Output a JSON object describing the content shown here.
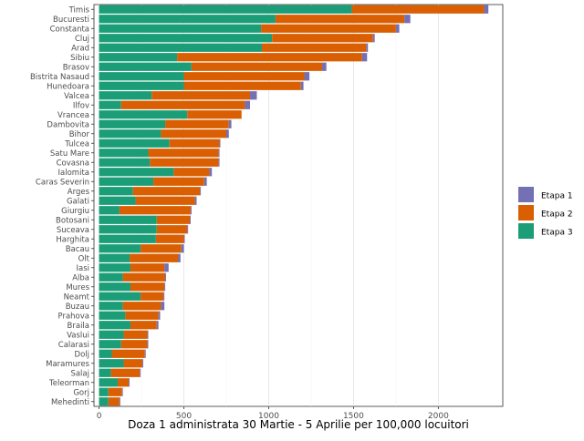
{
  "chart_data": {
    "type": "bar",
    "orientation": "horizontal",
    "stacked": true,
    "title": "",
    "xlabel": "Doza 1 administrata 30 Martie - 5 Aprilie per 100,000 locuitori",
    "ylabel": "",
    "xlim": [
      -30,
      2380
    ],
    "xticks": [
      0,
      500,
      1000,
      1500,
      2000
    ],
    "xtick_labels": [
      "0",
      "500",
      "1000",
      "1500",
      "2000"
    ],
    "grid": true,
    "legend_position": "right",
    "categories": [
      "Timis",
      "Bucuresti",
      "Constanta",
      "Cluj",
      "Arad",
      "Sibiu",
      "Brasov",
      "Bistrita Nasaud",
      "Hunedoara",
      "Valcea",
      "Ilfov",
      "Vrancea",
      "Dambovita",
      "Bihor",
      "Tulcea",
      "Satu Mare",
      "Covasna",
      "Ialomita",
      "Caras Severin",
      "Arges",
      "Galati",
      "Giurgiu",
      "Botosani",
      "Suceava",
      "Harghita",
      "Bacau",
      "Olt",
      "Iasi",
      "Alba",
      "Mures",
      "Neamt",
      "Buzau",
      "Prahova",
      "Braila",
      "Vaslui",
      "Calarasi",
      "Dolj",
      "Maramures",
      "Salaj",
      "Teleorman",
      "Gorj",
      "Mehedinti"
    ],
    "series": [
      {
        "name": "Etapa 3",
        "color": "#1b9e77",
        "values": [
          1490,
          1040,
          955,
          1020,
          960,
          460,
          545,
          500,
          500,
          310,
          130,
          520,
          390,
          365,
          415,
          290,
          300,
          440,
          320,
          200,
          215,
          120,
          340,
          340,
          335,
          245,
          180,
          185,
          140,
          185,
          245,
          140,
          155,
          185,
          145,
          130,
          75,
          145,
          70,
          110,
          55,
          55
        ]
      },
      {
        "name": "Etapa 2",
        "color": "#d95f02",
        "values": [
          780,
          760,
          795,
          595,
          615,
          1090,
          770,
          710,
          690,
          580,
          730,
          320,
          375,
          385,
          295,
          415,
          405,
          210,
          300,
          395,
          350,
          420,
          195,
          180,
          165,
          240,
          285,
          200,
          250,
          200,
          135,
          225,
          195,
          155,
          140,
          155,
          195,
          110,
          170,
          65,
          80,
          65
        ]
      },
      {
        "name": "Etapa 1",
        "color": "#7570b3",
        "values": [
          25,
          35,
          20,
          10,
          10,
          30,
          25,
          30,
          15,
          40,
          30,
          0,
          15,
          15,
          5,
          5,
          5,
          15,
          15,
          5,
          10,
          5,
          5,
          5,
          5,
          15,
          15,
          25,
          5,
          5,
          5,
          20,
          10,
          10,
          5,
          5,
          5,
          5,
          5,
          5,
          5,
          5
        ]
      }
    ],
    "legend": {
      "entries": [
        {
          "label": "Etapa 1",
          "color": "#7570b3"
        },
        {
          "label": "Etapa 2",
          "color": "#d95f02"
        },
        {
          "label": "Etapa 3",
          "color": "#1b9e77"
        }
      ]
    }
  }
}
